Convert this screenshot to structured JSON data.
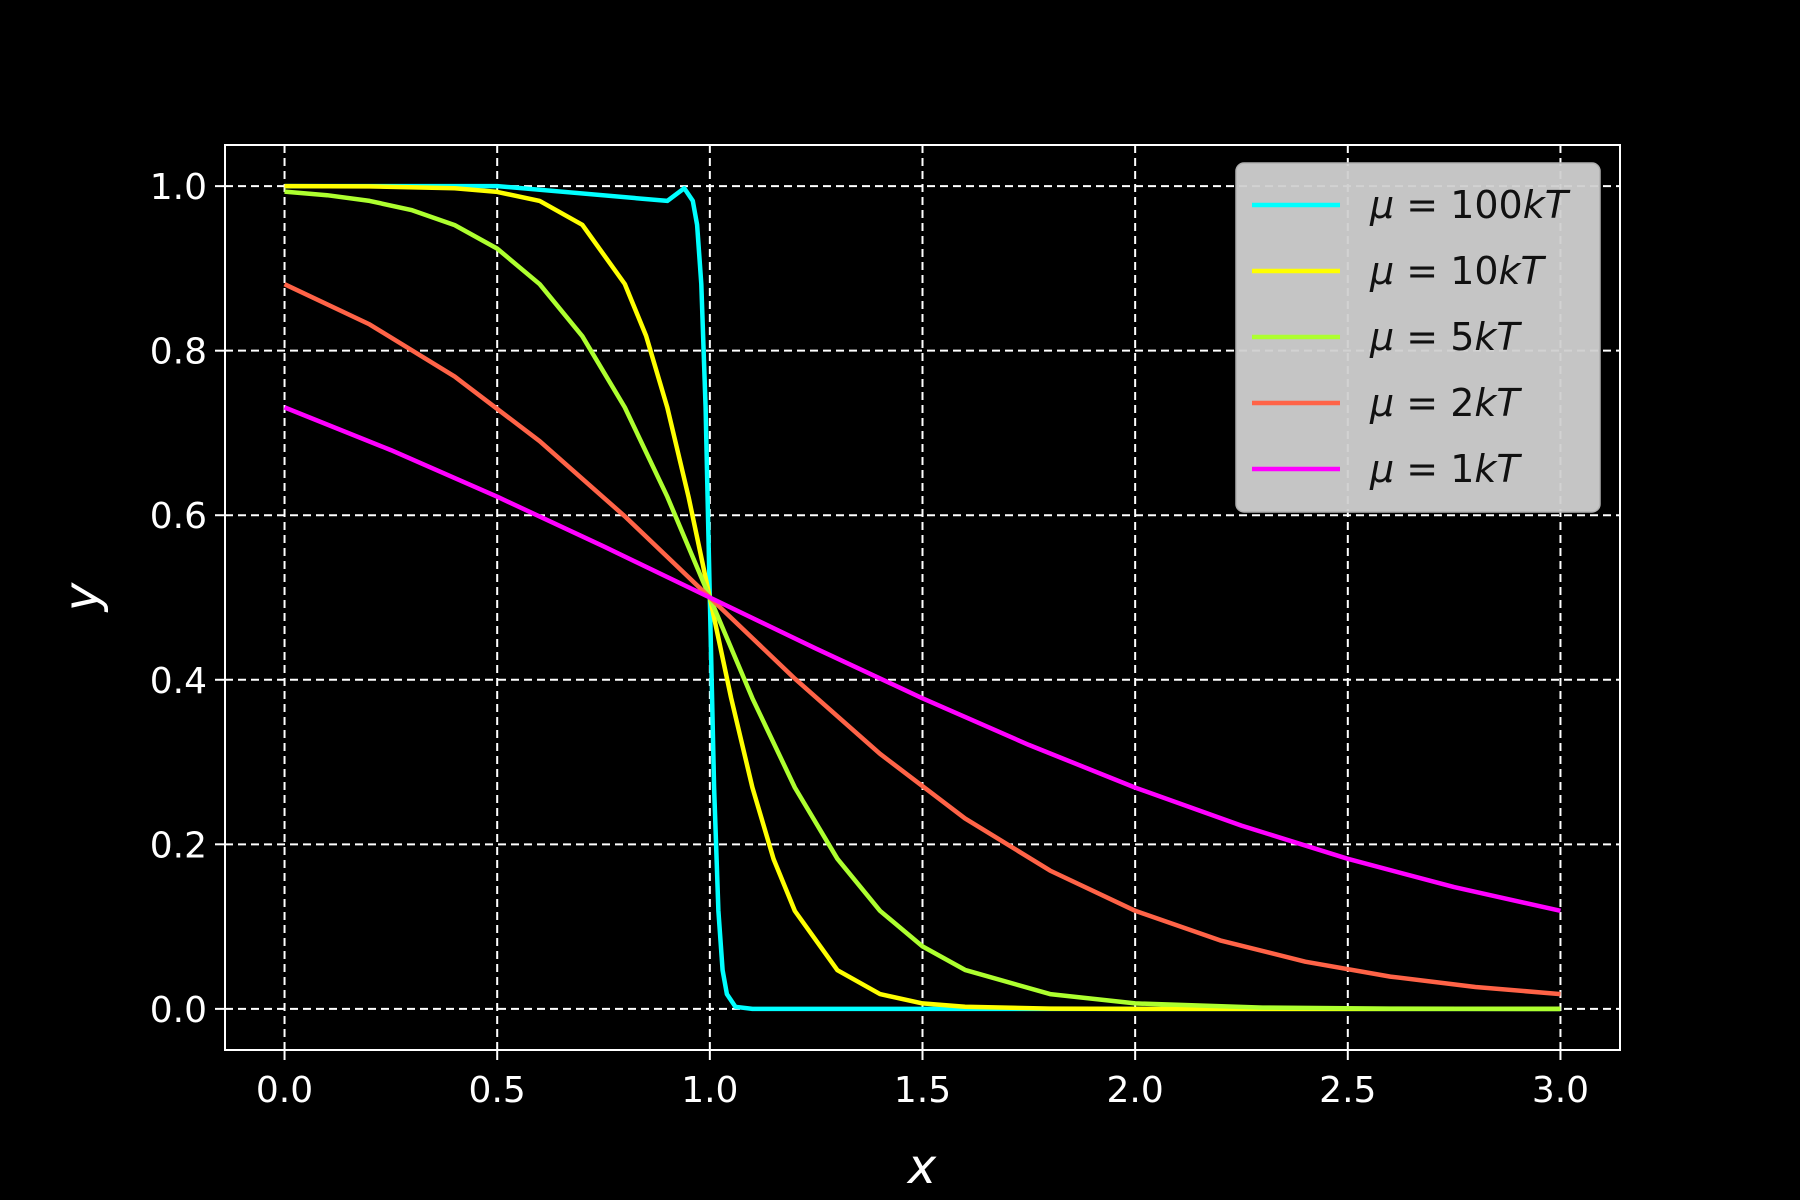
{
  "chart_data": {
    "type": "line",
    "title": "",
    "xlabel": "x",
    "ylabel": "y",
    "xlim": [
      -0.14,
      3.14
    ],
    "ylim": [
      -0.05,
      1.05
    ],
    "xticks": [
      0.0,
      0.5,
      1.0,
      1.5,
      2.0,
      2.5,
      3.0
    ],
    "xtick_labels": [
      "0.0",
      "0.5",
      "1.0",
      "1.5",
      "2.0",
      "2.5",
      "3.0"
    ],
    "yticks": [
      0.0,
      0.2,
      0.4,
      0.6,
      0.8,
      1.0
    ],
    "ytick_labels": [
      "0.0",
      "0.2",
      "0.4",
      "0.6",
      "0.8",
      "1.0"
    ],
    "grid": true,
    "legend_position": "top-right",
    "background": "#000000",
    "series": [
      {
        "name": "100kT",
        "label_prefix": "μ = ",
        "label_num": "100",
        "label_var": "kT",
        "color": "#00ffff",
        "x": [
          0.0,
          0.5,
          0.9,
          0.94,
          0.96,
          0.97,
          0.98,
          0.99,
          1.0,
          1.01,
          1.02,
          1.03,
          1.04,
          1.06,
          1.1,
          1.5,
          2.0,
          2.5,
          3.0
        ],
        "y": [
          1.0,
          1.0,
          0.982,
          0.9975,
          0.982,
          0.953,
          0.881,
          0.731,
          0.5,
          0.269,
          0.119,
          0.047,
          0.018,
          0.0025,
          0.0,
          0.0,
          0.0,
          0.0,
          0.0
        ]
      },
      {
        "name": "10kT",
        "label_prefix": "μ = ",
        "label_num": "10",
        "label_var": "kT",
        "color": "#ffff00",
        "x": [
          0.0,
          0.2,
          0.4,
          0.5,
          0.6,
          0.7,
          0.8,
          0.85,
          0.9,
          0.95,
          1.0,
          1.05,
          1.1,
          1.15,
          1.2,
          1.3,
          1.4,
          1.5,
          1.6,
          1.8,
          2.0,
          2.5,
          3.0
        ],
        "y": [
          1.0,
          0.9997,
          0.9975,
          0.993,
          0.982,
          0.953,
          0.881,
          0.818,
          0.731,
          0.622,
          0.5,
          0.378,
          0.269,
          0.182,
          0.119,
          0.047,
          0.018,
          0.0067,
          0.0025,
          0.0003,
          0.0,
          0.0,
          0.0
        ]
      },
      {
        "name": "5kT",
        "label_prefix": "μ = ",
        "label_num": "5",
        "label_var": "kT",
        "color": "#adff2f",
        "x": [
          0.0,
          0.1,
          0.2,
          0.3,
          0.4,
          0.5,
          0.6,
          0.7,
          0.8,
          0.9,
          1.0,
          1.1,
          1.2,
          1.3,
          1.4,
          1.5,
          1.6,
          1.8,
          2.0,
          2.3,
          2.6,
          3.0
        ],
        "y": [
          0.9933,
          0.989,
          0.982,
          0.9707,
          0.9526,
          0.9241,
          0.8808,
          0.8176,
          0.7311,
          0.6225,
          0.5,
          0.3775,
          0.2689,
          0.1824,
          0.1192,
          0.0759,
          0.0474,
          0.018,
          0.0067,
          0.0015,
          0.0003,
          0.0
        ]
      },
      {
        "name": "2kT",
        "label_prefix": "μ = ",
        "label_num": "2",
        "label_var": "kT",
        "color": "#ff6347",
        "x": [
          0.0,
          0.2,
          0.4,
          0.6,
          0.8,
          1.0,
          1.2,
          1.4,
          1.6,
          1.8,
          2.0,
          2.2,
          2.4,
          2.6,
          2.8,
          3.0
        ],
        "y": [
          0.8808,
          0.832,
          0.7685,
          0.69,
          0.5987,
          0.5,
          0.4013,
          0.31,
          0.2315,
          0.168,
          0.1192,
          0.0832,
          0.0573,
          0.0392,
          0.0266,
          0.018
        ]
      },
      {
        "name": "1kT",
        "label_prefix": "μ = ",
        "label_num": "1",
        "label_var": "kT",
        "color": "#ff00ff",
        "x": [
          0.0,
          0.25,
          0.5,
          0.75,
          1.0,
          1.25,
          1.5,
          1.75,
          2.0,
          2.25,
          2.5,
          2.75,
          3.0
        ],
        "y": [
          0.7311,
          0.6792,
          0.6225,
          0.5622,
          0.5,
          0.4378,
          0.3775,
          0.3208,
          0.2689,
          0.2227,
          0.1824,
          0.148,
          0.1192
        ]
      }
    ]
  }
}
